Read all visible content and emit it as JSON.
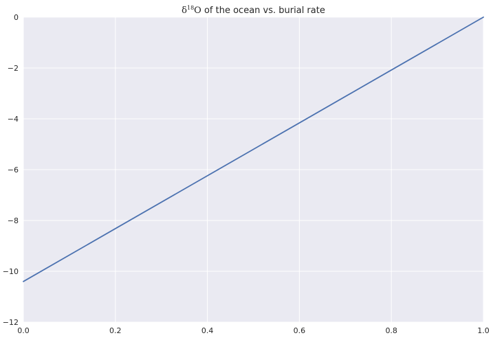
{
  "chart_data": {
    "type": "line",
    "title": {
      "symbol": "δ",
      "superscript": "18",
      "element": "O",
      "rest": " of the ocean vs. burial rate"
    },
    "xlabel": "",
    "ylabel": "",
    "xlim": [
      0,
      1
    ],
    "ylim": [
      -12,
      0
    ],
    "x_ticks": [
      0.0,
      0.2,
      0.4,
      0.6,
      0.8,
      1.0
    ],
    "x_tick_labels": [
      "0.0",
      "0.2",
      "0.4",
      "0.6",
      "0.8",
      "1.0"
    ],
    "y_ticks": [
      0,
      -2,
      -4,
      -6,
      -8,
      -10,
      -12
    ],
    "y_tick_labels": [
      "0",
      "−2",
      "−4",
      "−6",
      "−8",
      "−10",
      "−12"
    ],
    "grid": true,
    "series": [
      {
        "x": [
          0.0,
          0.2,
          0.4,
          0.6,
          0.8,
          1.0
        ],
        "y": [
          -10.4,
          -8.32,
          -6.24,
          -4.16,
          -2.08,
          0.0
        ],
        "color": "#4c72b0"
      }
    ],
    "colors": {
      "plot_background": "#eaeaf2",
      "grid": "#ffffff",
      "line": "#4c72b0",
      "text": "#262626"
    }
  }
}
